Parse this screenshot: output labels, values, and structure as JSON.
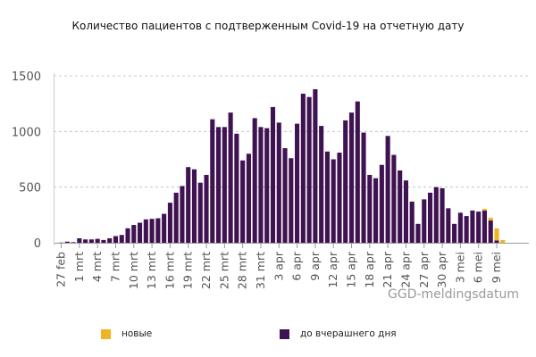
{
  "colors": {
    "new": "#F0B323",
    "previous": "#3F1251",
    "grid": "#a8c2cc",
    "axis": "#999999"
  },
  "chart_data": {
    "type": "bar",
    "stacked": true,
    "title": "Количество пациентов с подтверженным Covid-19 на отчетную дату",
    "ylim": [
      0,
      1500
    ],
    "yticks": [
      0,
      500,
      1000,
      1500
    ],
    "grid": true,
    "legend_position": "bottom",
    "x": [
      "27 feb",
      "28 feb",
      "29 feb",
      "1 mrt",
      "2 mrt",
      "3 mrt",
      "4 mrt",
      "5 mrt",
      "6 mrt",
      "7 mrt",
      "8 mrt",
      "9 mrt",
      "10 mrt",
      "11 mrt",
      "12 mrt",
      "13 mrt",
      "14 mrt",
      "15 mrt",
      "16 mrt",
      "17 mrt",
      "18 mrt",
      "19 mrt",
      "20 mrt",
      "21 mrt",
      "22 mrt",
      "23 mrt",
      "24 mrt",
      "25 mrt",
      "26 mrt",
      "27 mrt",
      "28 mrt",
      "29 mrt",
      "30 mrt",
      "31 mrt",
      "1 apr",
      "2 apr",
      "3 apr",
      "4 apr",
      "5 apr",
      "6 apr",
      "7 apr",
      "8 apr",
      "9 apr",
      "10 apr",
      "11 apr",
      "12 apr",
      "13 apr",
      "14 apr",
      "15 apr",
      "16 apr",
      "17 apr",
      "18 apr",
      "19 apr",
      "20 apr",
      "21 apr",
      "22 apr",
      "23 apr",
      "24 apr",
      "25 apr",
      "26 apr",
      "27 apr",
      "28 apr",
      "29 apr",
      "30 apr",
      "1 mei",
      "2 mei",
      "3 mei",
      "4 mei",
      "5 mei",
      "6 mei",
      "7 mei",
      "8 mei",
      "9 mei",
      "10 mei"
    ],
    "xtick_labels": [
      "27 feb",
      "1 mrt",
      "4 mrt",
      "7 mrt",
      "10 mrt",
      "13 mrt",
      "16 mrt",
      "19 mrt",
      "22 mrt",
      "25 mrt",
      "28 mrt",
      "31 mrt",
      "3 apr",
      "6 apr",
      "9 apr",
      "12 apr",
      "15 apr",
      "18 apr",
      "21 apr",
      "24 apr",
      "27 apr",
      "30 apr",
      "3 mei",
      "6 mei",
      "9 mei"
    ],
    "series": [
      {
        "name": "до вчерашнего дня",
        "key": "previous",
        "values": [
          2,
          10,
          5,
          40,
          30,
          30,
          35,
          25,
          40,
          60,
          70,
          130,
          160,
          180,
          210,
          215,
          220,
          260,
          360,
          450,
          510,
          680,
          660,
          540,
          610,
          1110,
          1040,
          1040,
          1170,
          980,
          740,
          800,
          1120,
          1040,
          1030,
          1220,
          1080,
          850,
          760,
          1070,
          1340,
          1310,
          1380,
          1050,
          820,
          750,
          810,
          1100,
          1170,
          1270,
          990,
          610,
          580,
          700,
          960,
          790,
          650,
          560,
          370,
          170,
          390,
          450,
          500,
          490,
          310,
          170,
          270,
          240,
          290,
          280,
          290,
          200,
          20,
          0
        ]
      },
      {
        "name": "новые",
        "key": "new",
        "values": [
          0,
          0,
          0,
          0,
          0,
          0,
          0,
          0,
          0,
          0,
          0,
          0,
          0,
          0,
          0,
          0,
          0,
          0,
          0,
          0,
          0,
          0,
          0,
          0,
          0,
          0,
          0,
          0,
          0,
          0,
          0,
          0,
          0,
          0,
          0,
          0,
          0,
          0,
          0,
          0,
          0,
          0,
          0,
          0,
          0,
          0,
          0,
          0,
          0,
          0,
          0,
          0,
          0,
          0,
          0,
          0,
          0,
          0,
          0,
          0,
          0,
          0,
          0,
          0,
          0,
          0,
          0,
          0,
          0,
          0,
          15,
          25,
          110,
          25
        ]
      }
    ]
  },
  "watermark": "GGD-meldingsdatum",
  "legend": {
    "new_label": "новые",
    "previous_label": "до вчерашнего дня"
  }
}
